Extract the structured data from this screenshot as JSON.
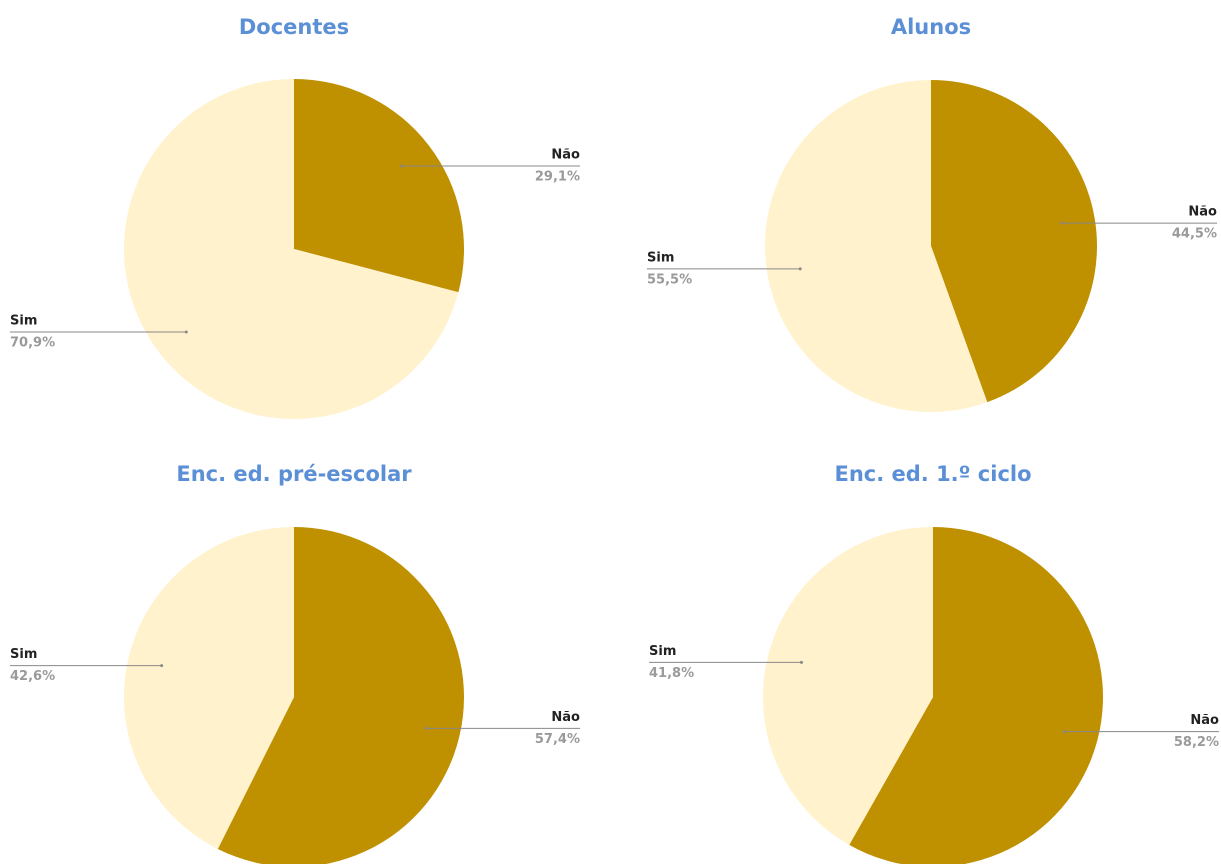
{
  "chart_data": [
    {
      "type": "pie",
      "title": "Docentes",
      "categories": [
        "Não",
        "Sim"
      ],
      "values": [
        29.1,
        70.9
      ],
      "value_labels": [
        "29,1%",
        "70,9%"
      ],
      "colors": [
        "#bf9000",
        "#fff2cc"
      ]
    },
    {
      "type": "pie",
      "title": "Alunos",
      "categories": [
        "Não",
        "Sim"
      ],
      "values": [
        44.5,
        55.5
      ],
      "value_labels": [
        "44,5%",
        "55,5%"
      ],
      "colors": [
        "#bf9000",
        "#fff2cc"
      ]
    },
    {
      "type": "pie",
      "title": "Enc. ed. pré-escolar",
      "categories": [
        "Não",
        "Sim"
      ],
      "values": [
        57.4,
        42.6
      ],
      "value_labels": [
        "57,4%",
        "42,6%"
      ],
      "colors": [
        "#bf9000",
        "#fff2cc"
      ]
    },
    {
      "type": "pie",
      "title": "Enc. ed. 1.º ciclo",
      "categories": [
        "Não",
        "Sim"
      ],
      "values": [
        58.2,
        41.8
      ],
      "value_labels": [
        "58,2%",
        "41,8%"
      ],
      "colors": [
        "#bf9000",
        "#fff2cc"
      ]
    }
  ]
}
